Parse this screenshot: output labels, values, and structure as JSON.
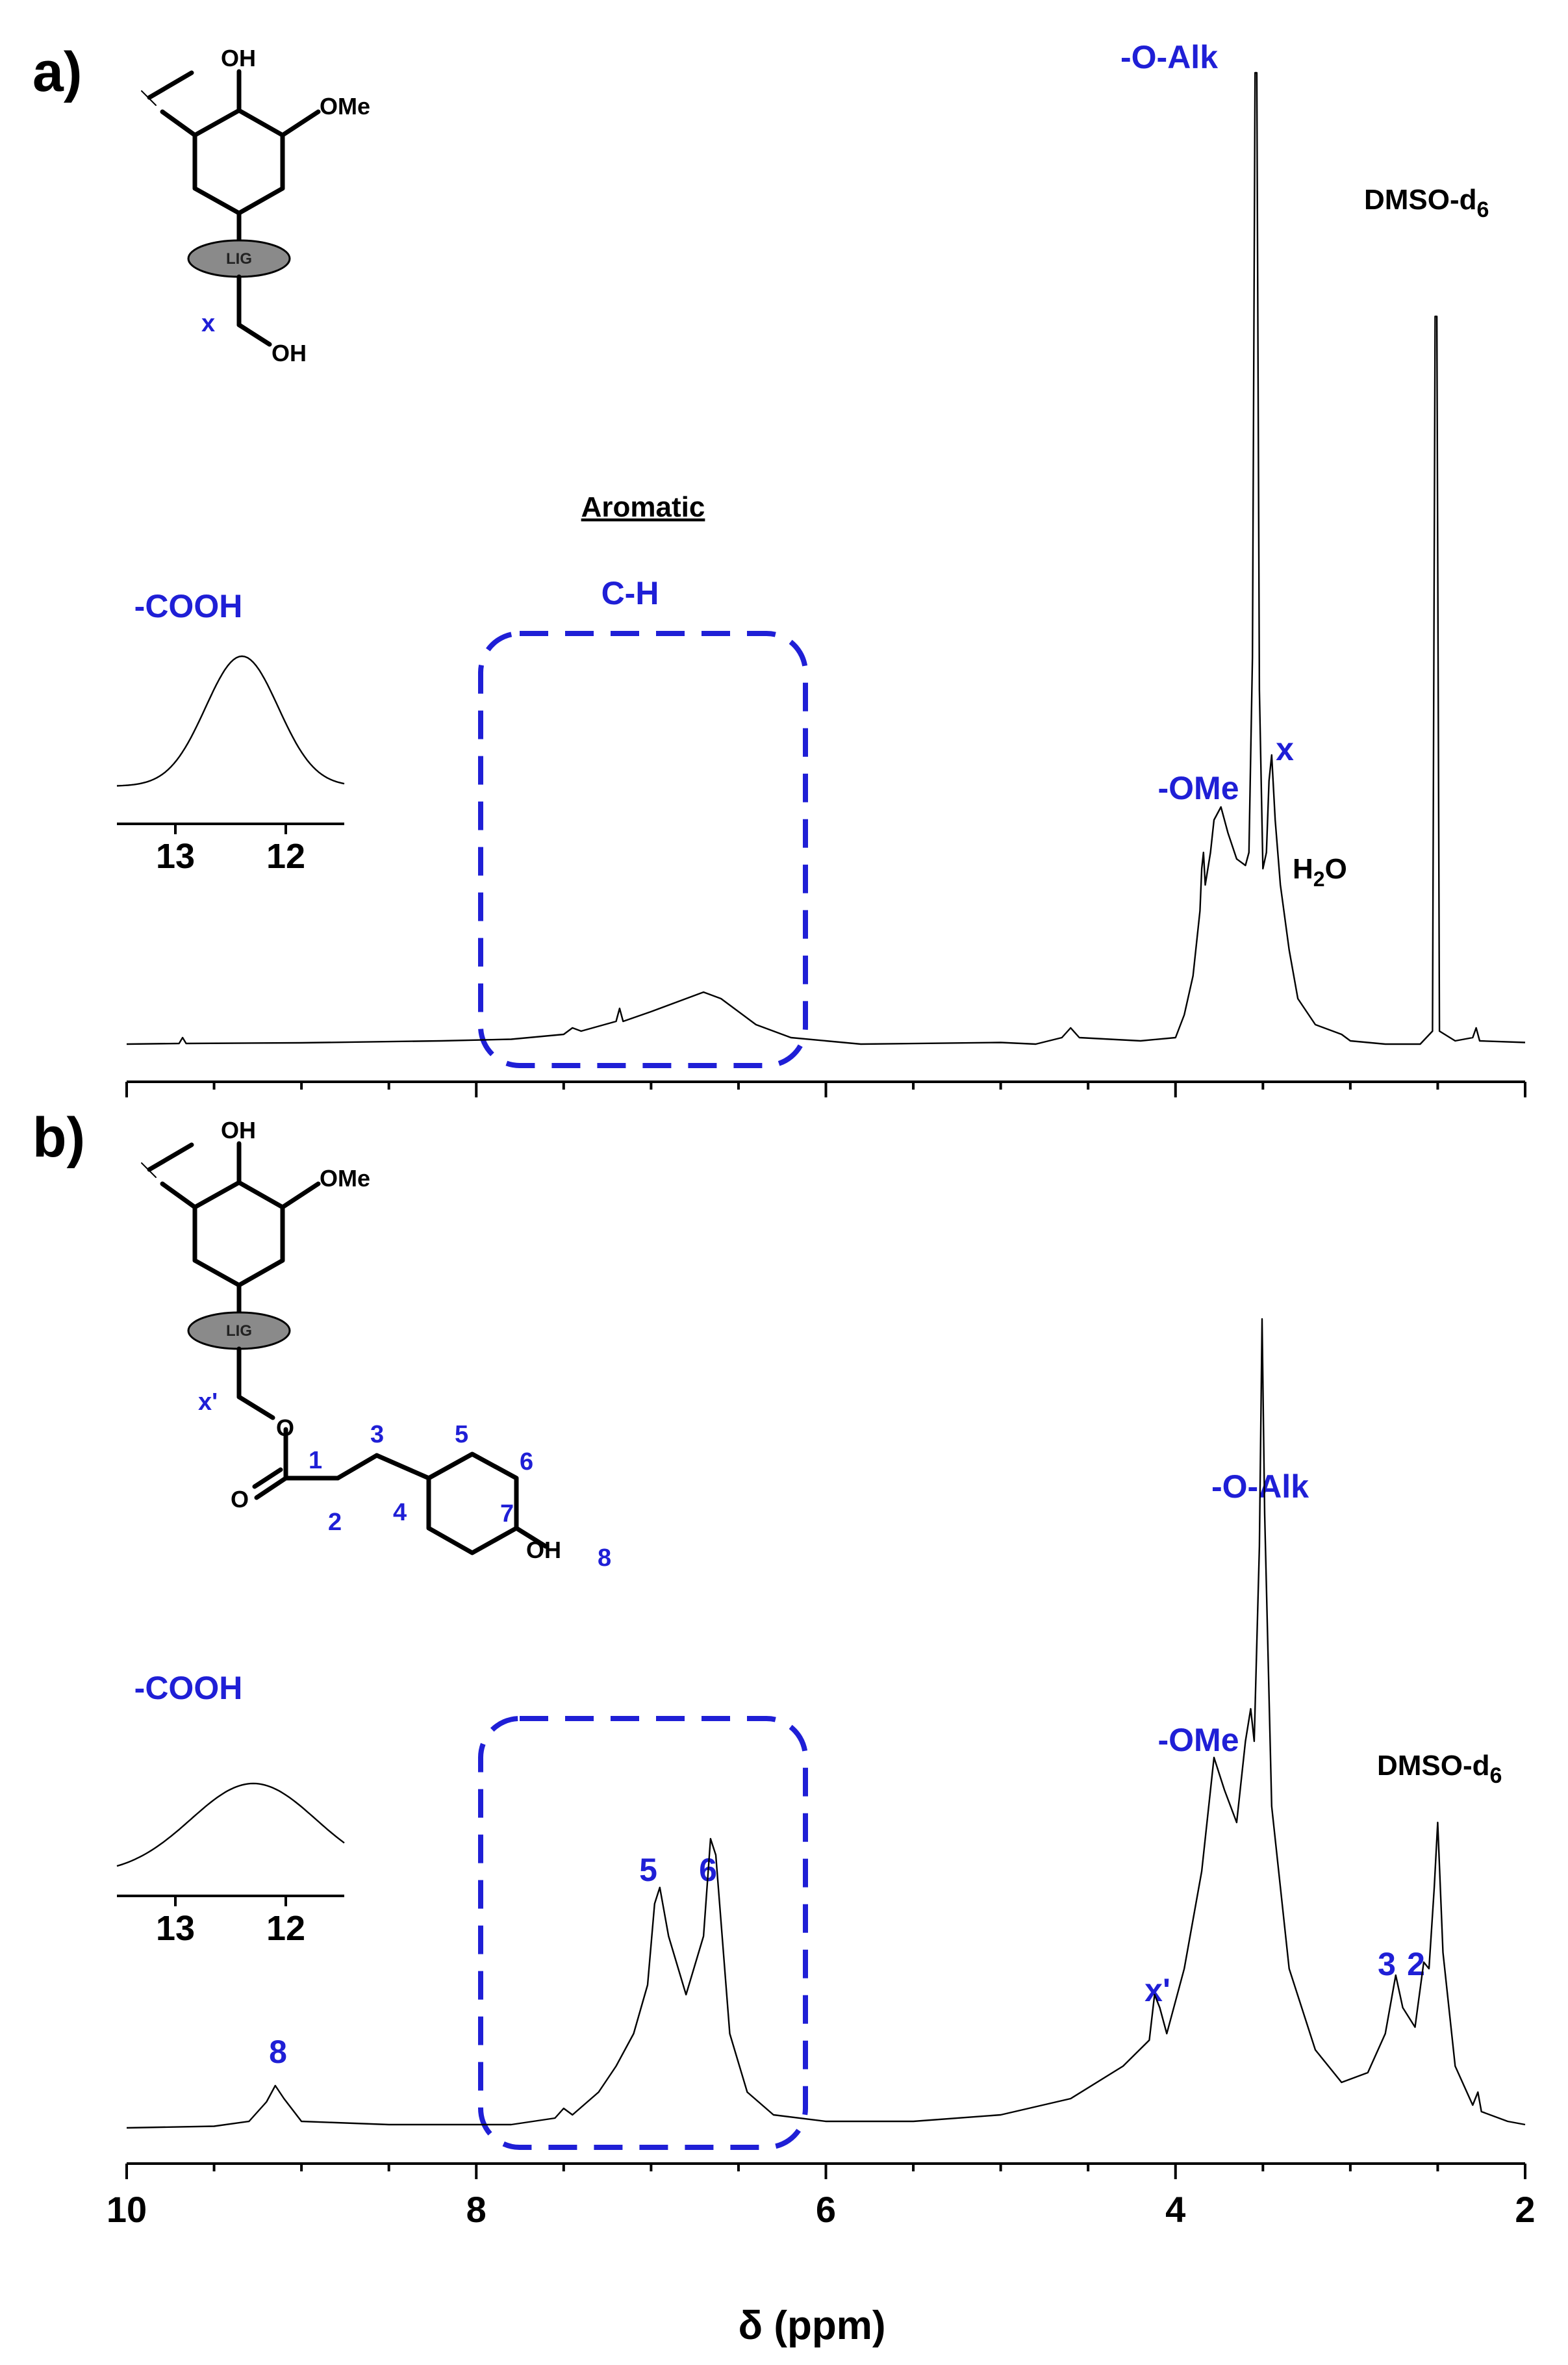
{
  "figure": {
    "xlabel": "δ (ppm)",
    "x_ticks": [
      "10",
      "8",
      "6",
      "4",
      "2"
    ],
    "inset_ticks": [
      "13",
      "12"
    ]
  },
  "chart_data": [
    {
      "type": "line",
      "panel": "a)",
      "title": "",
      "xlabel": "",
      "ylabel": "",
      "xlim": [
        10,
        2
      ],
      "x_reversed": true,
      "grid": false,
      "series": [
        {
          "points": [
            [
              10.0,
              0.01
            ],
            [
              9.7,
              0.012
            ],
            [
              9.68,
              0.03
            ],
            [
              9.66,
              0.012
            ],
            [
              9.0,
              0.014
            ],
            [
              8.2,
              0.02
            ],
            [
              7.8,
              0.025
            ],
            [
              7.5,
              0.04
            ],
            [
              7.45,
              0.06
            ],
            [
              7.4,
              0.05
            ],
            [
              7.2,
              0.08
            ],
            [
              7.18,
              0.12
            ],
            [
              7.16,
              0.08
            ],
            [
              7.0,
              0.11
            ],
            [
              6.8,
              0.15
            ],
            [
              6.7,
              0.17
            ],
            [
              6.6,
              0.15
            ],
            [
              6.4,
              0.07
            ],
            [
              6.2,
              0.03
            ],
            [
              5.8,
              0.01
            ],
            [
              5.0,
              0.015
            ],
            [
              4.8,
              0.01
            ],
            [
              4.65,
              0.03
            ],
            [
              4.6,
              0.06
            ],
            [
              4.55,
              0.03
            ],
            [
              4.2,
              0.02
            ],
            [
              4.0,
              0.03
            ],
            [
              3.95,
              0.1
            ],
            [
              3.9,
              0.22
            ],
            [
              3.86,
              0.42
            ],
            [
              3.85,
              0.55
            ],
            [
              3.84,
              0.6
            ],
            [
              3.83,
              0.5
            ],
            [
              3.8,
              0.6
            ],
            [
              3.78,
              0.7
            ],
            [
              3.74,
              0.74
            ],
            [
              3.7,
              0.66
            ],
            [
              3.65,
              0.58
            ],
            [
              3.6,
              0.56
            ],
            [
              3.58,
              0.6
            ],
            [
              3.56,
              1.2
            ],
            [
              3.545,
              3.0
            ],
            [
              3.535,
              3.0
            ],
            [
              3.52,
              1.1
            ],
            [
              3.5,
              0.55
            ],
            [
              3.48,
              0.6
            ],
            [
              3.465,
              0.82
            ],
            [
              3.45,
              0.9
            ],
            [
              3.43,
              0.7
            ],
            [
              3.4,
              0.5
            ],
            [
              3.35,
              0.3
            ],
            [
              3.3,
              0.15
            ],
            [
              3.2,
              0.07
            ],
            [
              3.05,
              0.04
            ],
            [
              3.0,
              0.02
            ],
            [
              2.8,
              0.01
            ],
            [
              2.6,
              0.01
            ],
            [
              2.53,
              0.05
            ],
            [
              2.515,
              2.25
            ],
            [
              2.505,
              2.25
            ],
            [
              2.49,
              0.05
            ],
            [
              2.4,
              0.02
            ],
            [
              2.3,
              0.03
            ],
            [
              2.28,
              0.06
            ],
            [
              2.26,
              0.02
            ],
            [
              2.0,
              0.015
            ]
          ]
        }
      ],
      "inset": {
        "label": "-COOH",
        "xlim": [
          13.5,
          11.5
        ],
        "peak_center": 12.4
      },
      "annotations": {
        "o_alk": "-O-Alk",
        "dmso_prefix": "DMSO-d",
        "dmso_sub": "6",
        "aromatic": "Aromatic",
        "ch": "C-H",
        "ome": "-OMe",
        "x": "x",
        "water_prefix": "H",
        "water_sub": "2",
        "water_suffix": "O"
      },
      "structure": {
        "oh": "OH",
        "ome": "OMe",
        "lig": "LIG",
        "x": "x",
        "oh_end": "OH"
      }
    },
    {
      "type": "line",
      "panel": "b)",
      "title": "",
      "xlabel": "δ (ppm)",
      "ylabel": "",
      "xlim": [
        10,
        2
      ],
      "x_reversed": true,
      "grid": false,
      "series": [
        {
          "points": [
            [
              10.0,
              0.01
            ],
            [
              9.5,
              0.015
            ],
            [
              9.3,
              0.03
            ],
            [
              9.2,
              0.09
            ],
            [
              9.15,
              0.14
            ],
            [
              9.1,
              0.1
            ],
            [
              9.0,
              0.03
            ],
            [
              8.5,
              0.02
            ],
            [
              8.0,
              0.02
            ],
            [
              7.8,
              0.02
            ],
            [
              7.55,
              0.04
            ],
            [
              7.5,
              0.07
            ],
            [
              7.45,
              0.05
            ],
            [
              7.3,
              0.12
            ],
            [
              7.2,
              0.2
            ],
            [
              7.1,
              0.3
            ],
            [
              7.02,
              0.45
            ],
            [
              6.98,
              0.7
            ],
            [
              6.95,
              0.75
            ],
            [
              6.9,
              0.6
            ],
            [
              6.8,
              0.42
            ],
            [
              6.7,
              0.6
            ],
            [
              6.66,
              0.9
            ],
            [
              6.63,
              0.85
            ],
            [
              6.55,
              0.3
            ],
            [
              6.45,
              0.12
            ],
            [
              6.3,
              0.05
            ],
            [
              6.0,
              0.03
            ],
            [
              5.5,
              0.03
            ],
            [
              5.0,
              0.05
            ],
            [
              4.6,
              0.1
            ],
            [
              4.3,
              0.2
            ],
            [
              4.15,
              0.28
            ],
            [
              4.12,
              0.42
            ],
            [
              4.09,
              0.38
            ],
            [
              4.05,
              0.3
            ],
            [
              3.95,
              0.5
            ],
            [
              3.85,
              0.8
            ],
            [
              3.78,
              1.15
            ],
            [
              3.72,
              1.05
            ],
            [
              3.65,
              0.95
            ],
            [
              3.6,
              1.2
            ],
            [
              3.57,
              1.3
            ],
            [
              3.55,
              1.2
            ],
            [
              3.52,
              1.8
            ],
            [
              3.505,
              2.5
            ],
            [
              3.49,
              1.9
            ],
            [
              3.45,
              1.0
            ],
            [
              3.35,
              0.5
            ],
            [
              3.2,
              0.25
            ],
            [
              3.05,
              0.15
            ],
            [
              2.9,
              0.18
            ],
            [
              2.8,
              0.3
            ],
            [
              2.74,
              0.48
            ],
            [
              2.7,
              0.38
            ],
            [
              2.63,
              0.32
            ],
            [
              2.58,
              0.52
            ],
            [
              2.55,
              0.5
            ],
            [
              2.52,
              0.75
            ],
            [
              2.5,
              0.95
            ],
            [
              2.47,
              0.55
            ],
            [
              2.4,
              0.2
            ],
            [
              2.3,
              0.08
            ],
            [
              2.27,
              0.12
            ],
            [
              2.25,
              0.06
            ],
            [
              2.1,
              0.03
            ],
            [
              2.0,
              0.02
            ]
          ]
        }
      ],
      "inset": {
        "label": "-COOH",
        "xlim": [
          13.5,
          11.5
        ],
        "peak_center": 12.3
      },
      "annotations": {
        "o_alk": "-O-Alk",
        "dmso_prefix": "DMSO-d",
        "dmso_sub": "6",
        "ome": "-OMe",
        "p5": "5",
        "p6": "6",
        "p8": "8",
        "xprime": "x'",
        "p3": "3",
        "p2": "2"
      },
      "structure": {
        "oh": "OH",
        "ome": "OMe",
        "lig": "LIG",
        "xprime": "x'",
        "o": "O",
        "carbonyl_o": "O",
        "oh_end": "OH",
        "n1": "1",
        "n2": "2",
        "n3": "3",
        "n4": "4",
        "n5": "5",
        "n6": "6",
        "n7": "7",
        "n8": "8"
      }
    }
  ]
}
